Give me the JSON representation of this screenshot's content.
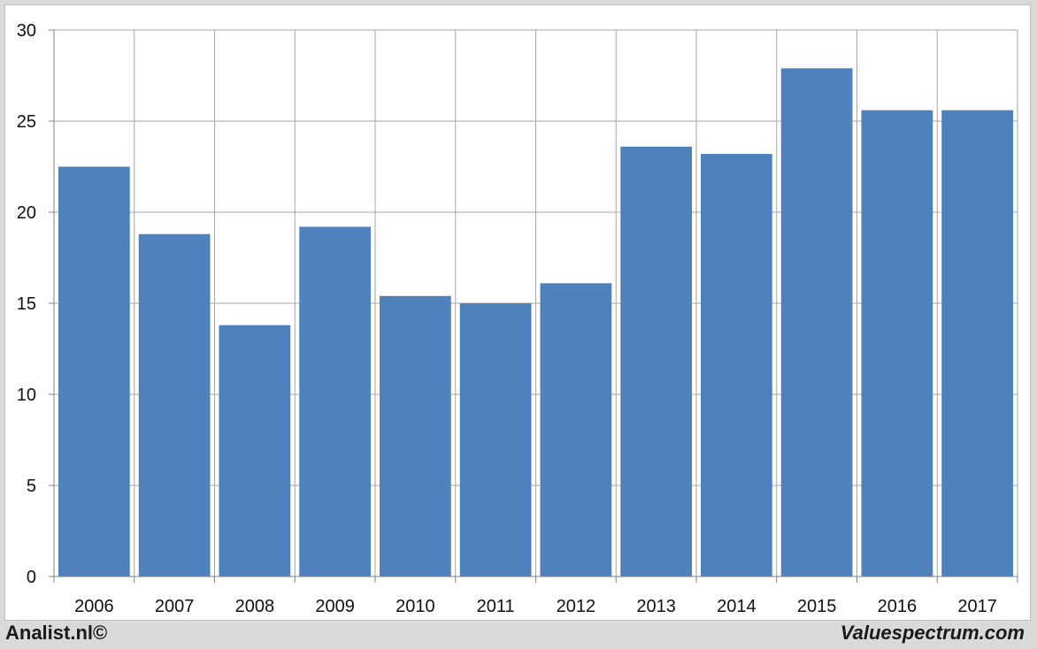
{
  "chart_data": {
    "type": "bar",
    "categories": [
      "2006",
      "2007",
      "2008",
      "2009",
      "2010",
      "2011",
      "2012",
      "2013",
      "2014",
      "2015",
      "2016",
      "2017"
    ],
    "values": [
      22.5,
      18.8,
      13.8,
      19.2,
      15.4,
      15.0,
      16.1,
      23.6,
      23.2,
      27.9,
      25.6,
      25.6
    ],
    "title": "",
    "xlabel": "",
    "ylabel": "",
    "ylim": [
      0,
      30
    ],
    "yticks": [
      0,
      5,
      10,
      15,
      20,
      25,
      30
    ],
    "grid": true,
    "bar_color": "#4f81bd"
  },
  "footer": {
    "left": "Analist.nl©",
    "right": "Valuespectrum.com"
  }
}
